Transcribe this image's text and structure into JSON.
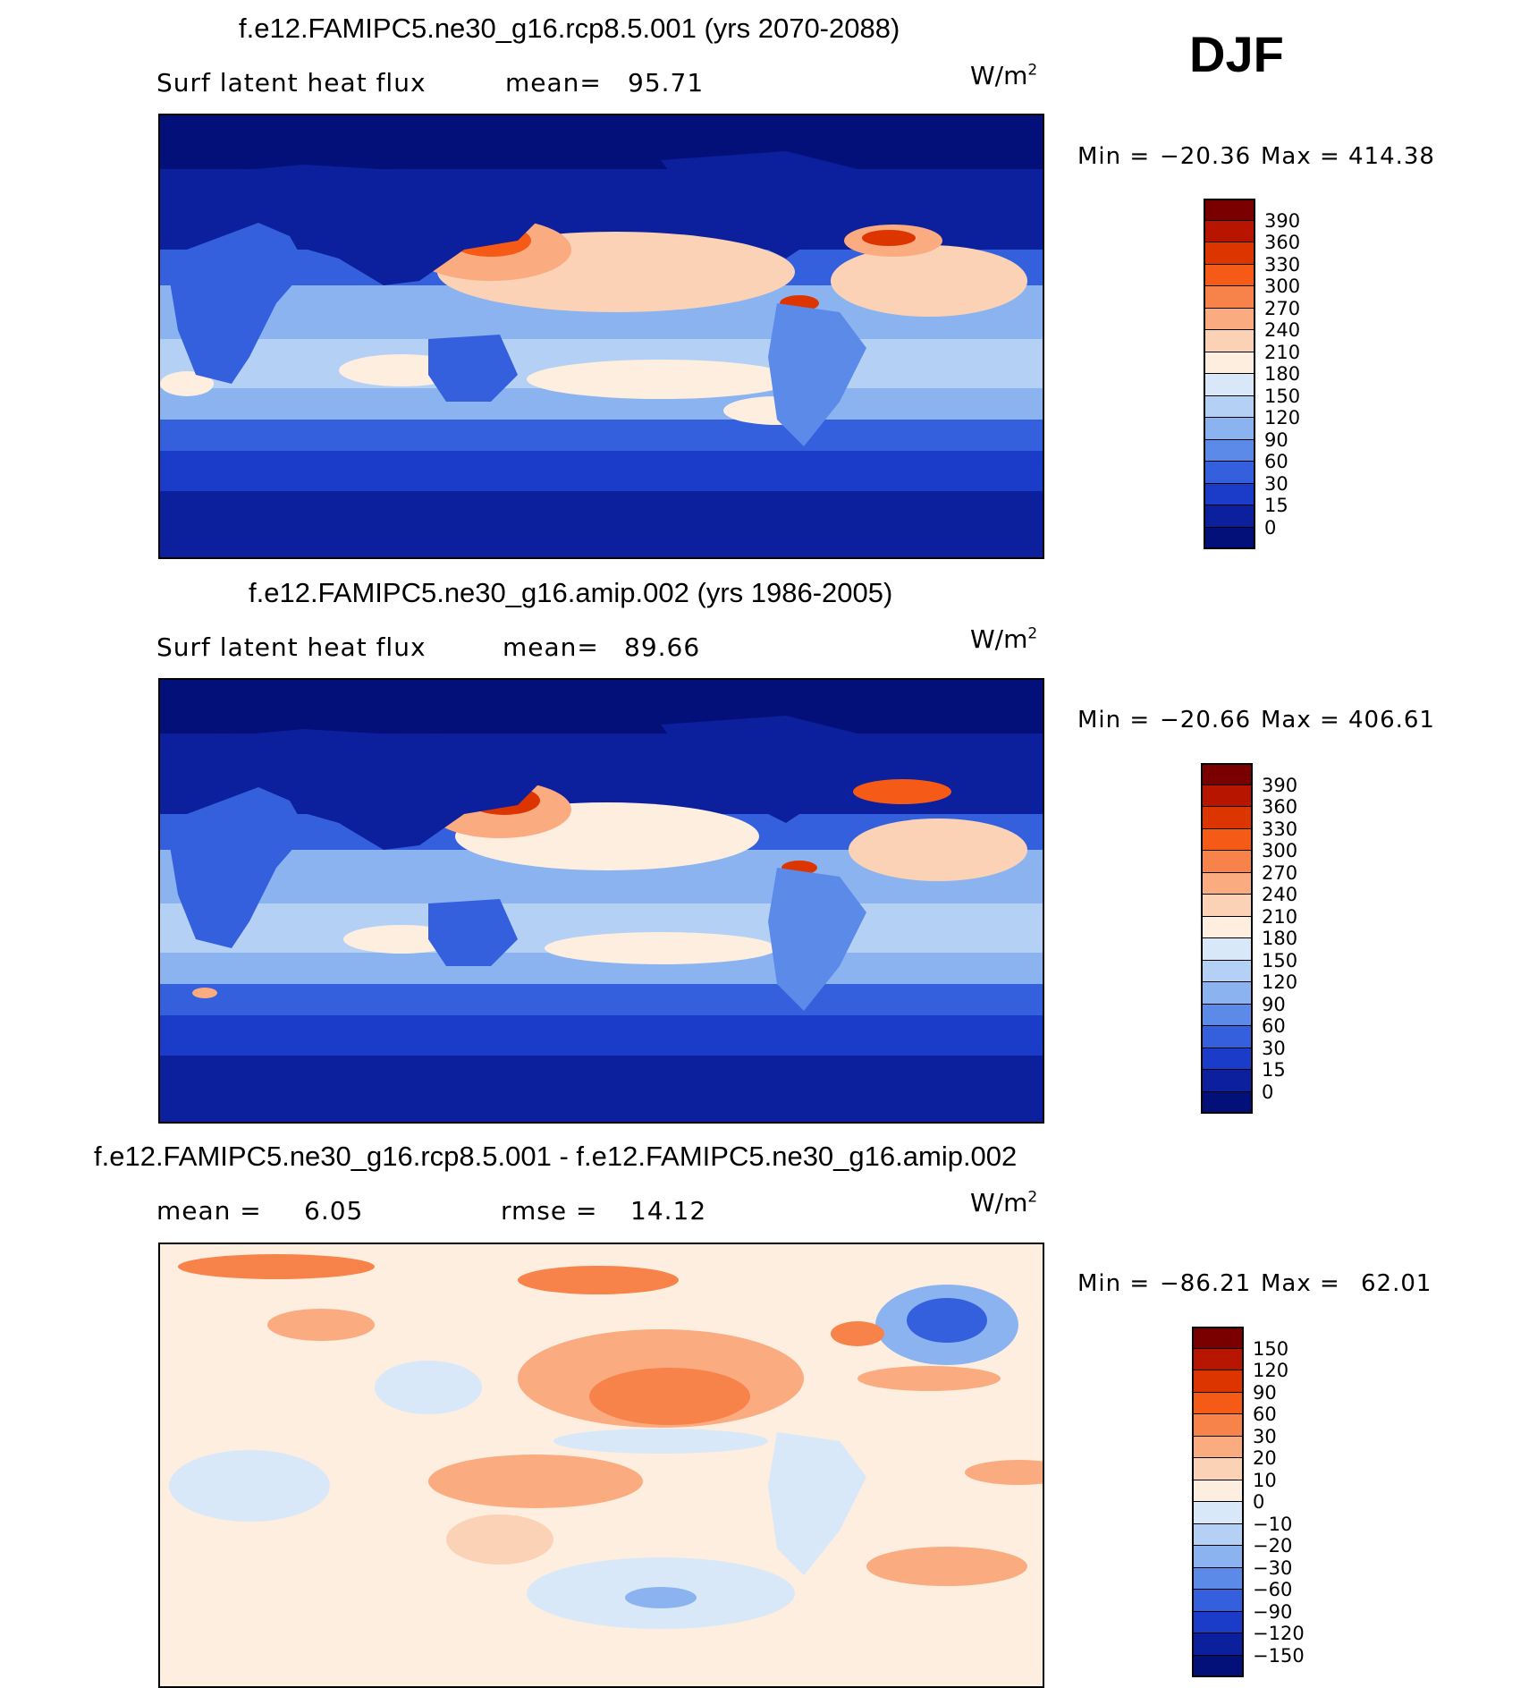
{
  "season": "DJF",
  "panels": [
    {
      "id": "top",
      "title": "f.e12.FAMIPC5.ne30_g16.rcp8.5.001 (yrs 2070-2088)",
      "left_label": "Surf latent heat flux",
      "mid_label": "mean=",
      "mid_value": "95.71",
      "unit": "W/m",
      "unit_sup": "2",
      "min_label": "Min =",
      "min_value": "−20.36",
      "max_label": "Max =",
      "max_value": "414.38",
      "colorbar": {
        "labels": [
          "390",
          "360",
          "330",
          "300",
          "270",
          "240",
          "210",
          "180",
          "150",
          "120",
          "90",
          "60",
          "30",
          "15",
          "0"
        ],
        "colors": [
          "#7a0000",
          "#b81500",
          "#dd3500",
          "#f55a16",
          "#f8834a",
          "#fbab80",
          "#fcd2b6",
          "#fdeee0",
          "#d9e8f8",
          "#b4d0f5",
          "#8ab3f0",
          "#5b8ae8",
          "#3460de",
          "#1a3cc9",
          "#0c1f9c",
          "#04107a"
        ]
      },
      "chart_data": {
        "type": "heatmap",
        "title": "f.e12.FAMIPC5.ne30_g16.rcp8.5.001 (yrs 2070-2088)",
        "variable": "Surf latent heat flux",
        "units": "W/m2",
        "mean": 95.71,
        "min": -20.36,
        "max": 414.38,
        "levels": [
          0,
          15,
          30,
          60,
          90,
          120,
          150,
          180,
          210,
          240,
          270,
          300,
          330,
          360,
          390
        ]
      }
    },
    {
      "id": "middle",
      "title": "f.e12.FAMIPC5.ne30_g16.amip.002 (yrs 1986-2005)",
      "left_label": "Surf latent heat flux",
      "mid_label": "mean=",
      "mid_value": "89.66",
      "unit": "W/m",
      "unit_sup": "2",
      "min_label": "Min =",
      "min_value": "−20.66",
      "max_label": "Max =",
      "max_value": "406.61",
      "colorbar": {
        "labels": [
          "390",
          "360",
          "330",
          "300",
          "270",
          "240",
          "210",
          "180",
          "150",
          "120",
          "90",
          "60",
          "30",
          "15",
          "0"
        ],
        "colors": [
          "#7a0000",
          "#b81500",
          "#dd3500",
          "#f55a16",
          "#f8834a",
          "#fbab80",
          "#fcd2b6",
          "#fdeee0",
          "#d9e8f8",
          "#b4d0f5",
          "#8ab3f0",
          "#5b8ae8",
          "#3460de",
          "#1a3cc9",
          "#0c1f9c",
          "#04107a"
        ]
      },
      "chart_data": {
        "type": "heatmap",
        "title": "f.e12.FAMIPC5.ne30_g16.amip.002 (yrs 1986-2005)",
        "variable": "Surf latent heat flux",
        "units": "W/m2",
        "mean": 89.66,
        "min": -20.66,
        "max": 406.61,
        "levels": [
          0,
          15,
          30,
          60,
          90,
          120,
          150,
          180,
          210,
          240,
          270,
          300,
          330,
          360,
          390
        ]
      }
    },
    {
      "id": "bottom",
      "title": "f.e12.FAMIPC5.ne30_g16.rcp8.5.001 - f.e12.FAMIPC5.ne30_g16.amip.002",
      "left_label": "mean =",
      "left_value": "6.05",
      "mid_label": "rmse =",
      "mid_value": "14.12",
      "unit": "W/m",
      "unit_sup": "2",
      "min_label": "Min =",
      "min_value": "−86.21",
      "max_label": "Max =",
      "max_value": "62.01",
      "colorbar": {
        "labels": [
          "150",
          "120",
          "90",
          "60",
          "30",
          "20",
          "10",
          "0",
          "−10",
          "−20",
          "−30",
          "−60",
          "−90",
          "−120",
          "−150"
        ],
        "colors": [
          "#7a0000",
          "#b81500",
          "#dd3500",
          "#f55a16",
          "#f8834a",
          "#fbab80",
          "#fcd2b6",
          "#fdeee0",
          "#d9e8f8",
          "#b4d0f5",
          "#8ab3f0",
          "#5b8ae8",
          "#3460de",
          "#1a3cc9",
          "#0c1f9c",
          "#04107a"
        ]
      },
      "chart_data": {
        "type": "heatmap",
        "title": "f.e12.FAMIPC5.ne30_g16.rcp8.5.001 - f.e12.FAMIPC5.ne30_g16.amip.002",
        "units": "W/m2",
        "mean": 6.05,
        "rmse": 14.12,
        "min": -86.21,
        "max": 62.01,
        "levels": [
          -150,
          -120,
          -90,
          -60,
          -30,
          -20,
          -10,
          0,
          10,
          20,
          30,
          60,
          90,
          120,
          150
        ]
      }
    }
  ]
}
